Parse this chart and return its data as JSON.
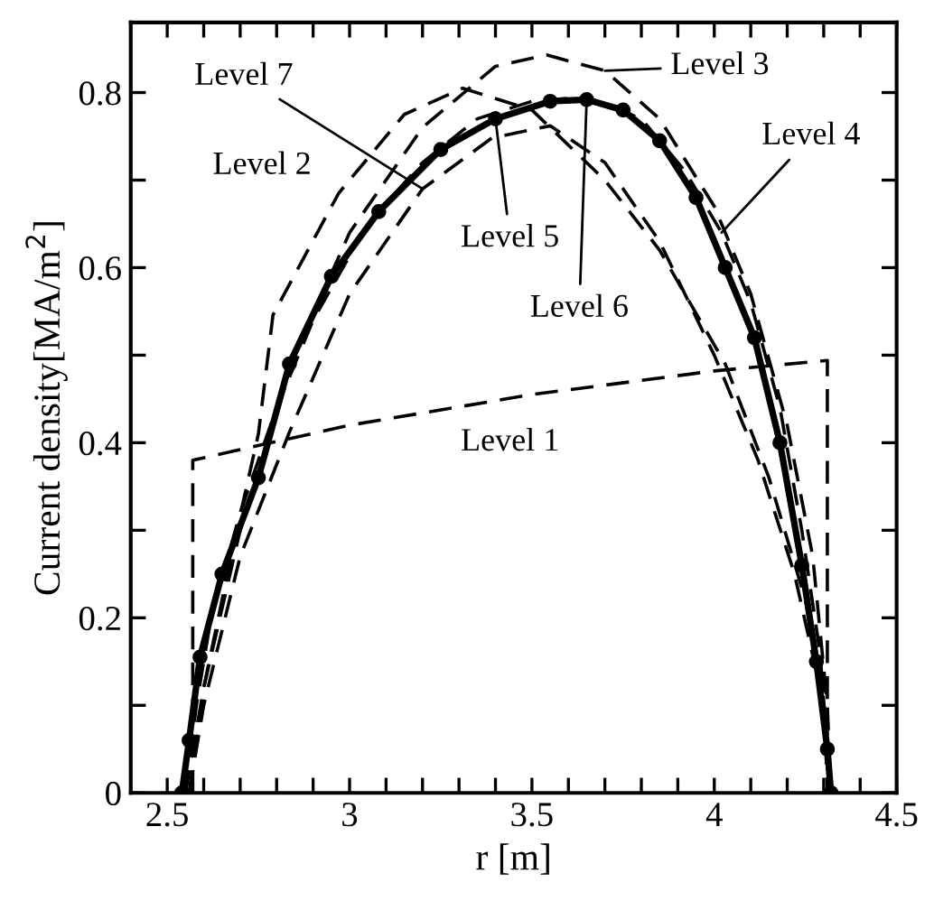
{
  "chart_data": {
    "type": "line",
    "xlabel": "r [m]",
    "ylabel": "Current density[MA/m$^{2}$]",
    "xlim": [
      2.4,
      4.5
    ],
    "ylim": [
      0,
      0.88
    ],
    "xticks": [
      2.5,
      {
        "value": 2.6,
        "label": null
      },
      {
        "value": 2.7,
        "label": null
      },
      {
        "value": 2.8,
        "label": null
      },
      {
        "value": 2.9,
        "label": null
      },
      3,
      {
        "value": 3.1,
        "label": null
      },
      {
        "value": 3.2,
        "label": null
      },
      {
        "value": 3.3,
        "label": null
      },
      {
        "value": 3.4,
        "label": null
      },
      3.5,
      {
        "value": 3.6,
        "label": null
      },
      {
        "value": 3.7,
        "label": null
      },
      {
        "value": 3.8,
        "label": null
      },
      {
        "value": 3.9,
        "label": null
      },
      4,
      {
        "value": 4.1,
        "label": null
      },
      {
        "value": 4.2,
        "label": null
      },
      {
        "value": 4.3,
        "label": null
      },
      {
        "value": 4.4,
        "label": null
      },
      4.5
    ],
    "yticks": [
      0,
      {
        "value": 0.1,
        "label": null
      },
      0.2,
      {
        "value": 0.3,
        "label": null
      },
      0.4,
      {
        "value": 0.5,
        "label": null
      },
      0.6,
      {
        "value": 0.7,
        "label": null
      },
      0.8
    ],
    "grid": false,
    "annotations": [
      "Level 1",
      "Level 2",
      {
        "text": "Level 3",
        "x": 3.7,
        "y": 0.825
      },
      {
        "text": "Level 4",
        "x": 4.02,
        "y": 0.64
      },
      {
        "text": "Level 5",
        "x": 3.4,
        "y": 0.77
      },
      {
        "text": "Level 6",
        "x": 3.65,
        "y": 0.792
      },
      {
        "text": "Level 7",
        "x": 3.2,
        "y": 0.69
      }
    ],
    "series": [
      {
        "color": "#000000",
        "line_style": "dashed",
        "marker": "none",
        "x": [
          2.57,
          2.57,
          3.0,
          3.5,
          4.0,
          4.31,
          4.31
        ],
        "values": [
          0,
          0.38,
          0.42,
          0.455,
          0.482,
          0.494,
          0
        ]
      },
      {
        "color": "#000000",
        "line_style": "dashed",
        "marker": "none",
        "x": [
          2.55,
          2.6,
          2.68,
          2.75,
          2.79,
          2.97,
          3.15,
          3.31,
          3.5,
          3.7,
          3.85,
          4.03,
          4.15,
          4.25,
          4.3,
          4.31
        ],
        "values": [
          0,
          0.12,
          0.28,
          0.41,
          0.546,
          0.685,
          0.775,
          0.805,
          0.78,
          0.7,
          0.62,
          0.49,
          0.36,
          0.22,
          0.12,
          0
        ]
      },
      {
        "color": "#000000",
        "line_style": "dashed",
        "marker": "none",
        "x": [
          2.56,
          2.6,
          2.7,
          2.85,
          3.0,
          3.2,
          3.4,
          3.54,
          3.7,
          3.85,
          4.0,
          4.1,
          4.2,
          4.27,
          4.31,
          4.32
        ],
        "values": [
          0,
          0.12,
          0.3,
          0.5,
          0.64,
          0.76,
          0.83,
          0.843,
          0.825,
          0.77,
          0.67,
          0.57,
          0.42,
          0.27,
          0.1,
          0
        ]
      },
      {
        "color": "#000000",
        "line_style": "dashed",
        "marker": "none",
        "x": [
          2.55,
          2.58,
          2.62,
          2.7,
          2.8,
          2.9,
          3.05,
          3.2,
          3.35,
          3.5,
          3.65,
          3.8,
          3.92,
          4.02,
          4.1,
          4.18,
          4.24,
          4.29,
          4.31
        ],
        "values": [
          0,
          0.1,
          0.2,
          0.32,
          0.44,
          0.54,
          0.65,
          0.72,
          0.77,
          0.79,
          0.795,
          0.77,
          0.71,
          0.64,
          0.56,
          0.44,
          0.3,
          0.16,
          0.05
        ]
      },
      {
        "color": "#000000",
        "line_style": "solid",
        "marker": "circle",
        "x": [
          2.54,
          2.56,
          2.59,
          2.65,
          2.75,
          2.835,
          2.95,
          3.08,
          3.25,
          3.4,
          3.55,
          3.65,
          3.75,
          3.85,
          3.95,
          4.03,
          4.11,
          4.18,
          4.24,
          4.28,
          4.31,
          4.32
        ],
        "values": [
          0,
          0.06,
          0.155,
          0.25,
          0.36,
          0.49,
          0.59,
          0.664,
          0.735,
          0.77,
          0.79,
          0.792,
          0.78,
          0.745,
          0.68,
          0.6,
          0.52,
          0.4,
          0.26,
          0.15,
          0.05,
          0
        ]
      },
      {
        "color": "#000000",
        "line_style": "dashed",
        "marker": "none",
        "x": [
          2.56,
          2.6,
          2.7,
          2.835,
          3.0,
          3.2,
          3.39,
          3.55,
          3.7,
          3.85,
          4.0,
          4.12,
          4.22,
          4.29,
          4.32
        ],
        "values": [
          0,
          0.1,
          0.27,
          0.412,
          0.57,
          0.69,
          0.748,
          0.762,
          0.72,
          0.63,
          0.5,
          0.38,
          0.25,
          0.12,
          0
        ]
      }
    ]
  }
}
